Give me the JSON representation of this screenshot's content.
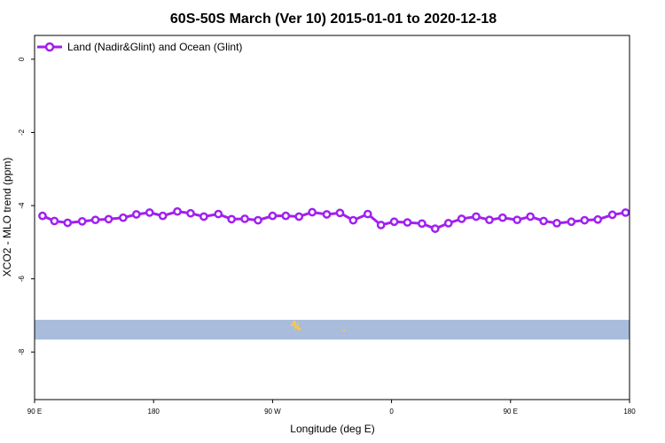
{
  "chart_data": {
    "type": "line",
    "title": "60S-50S March (Ver 10)   2015-01-01 to 2020-12-18",
    "xlabel": "Longitude (deg E)",
    "ylabel": "XCO2 - MLO trend (ppm)",
    "x_ticks": [
      "90 E",
      "180",
      "90 W",
      "0",
      "90 E",
      "180"
    ],
    "x_tick_positions": [
      90,
      180,
      270,
      360,
      450,
      540
    ],
    "xlim": [
      90,
      540
    ],
    "ylim": [
      -9.3,
      0.65
    ],
    "y_ticks": [
      0,
      -2,
      -4,
      -6,
      -8
    ],
    "grid": false,
    "legend_position": "top-left",
    "series": [
      {
        "name": "Land (Nadir&Glint) and Ocean (Glint)",
        "color": "#a020f0",
        "x": [
          96,
          105,
          115,
          126,
          136,
          146,
          157,
          167,
          177,
          187,
          198,
          208,
          218,
          229,
          239,
          249,
          259,
          270,
          280,
          290,
          300,
          311,
          321,
          331,
          342,
          352,
          362,
          372,
          383,
          393,
          403,
          413,
          424,
          434,
          444,
          455,
          465,
          475,
          485,
          496,
          506,
          516,
          527,
          537
        ],
        "y": [
          -4.28,
          -4.42,
          -4.47,
          -4.43,
          -4.39,
          -4.37,
          -4.33,
          -4.24,
          -4.19,
          -4.28,
          -4.16,
          -4.21,
          -4.3,
          -4.23,
          -4.37,
          -4.36,
          -4.4,
          -4.28,
          -4.28,
          -4.3,
          -4.18,
          -4.24,
          -4.2,
          -4.4,
          -4.23,
          -4.53,
          -4.44,
          -4.46,
          -4.49,
          -4.63,
          -4.48,
          -4.36,
          -4.3,
          -4.39,
          -4.33,
          -4.39,
          -4.3,
          -4.42,
          -4.48,
          -4.44,
          -4.4,
          -4.38,
          -4.25,
          -4.19
        ]
      }
    ],
    "band": {
      "y_top": -7.12,
      "y_bottom": -7.66,
      "color": "#a9bcdc",
      "highlight_color": "#f5c84b"
    }
  }
}
